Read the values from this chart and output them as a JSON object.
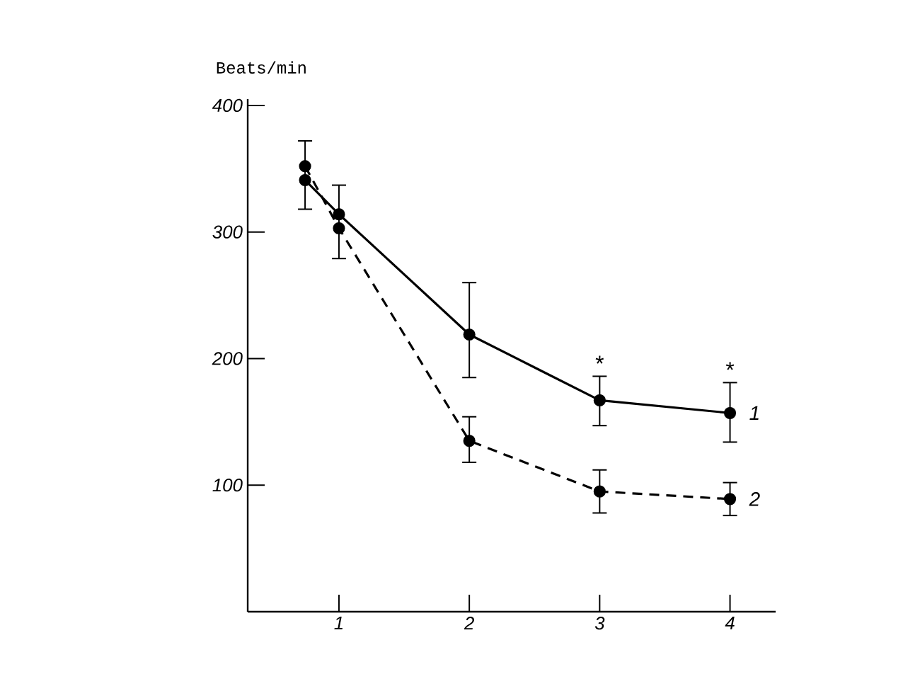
{
  "chart_data": {
    "type": "line",
    "ylabel": "Beats/min",
    "x": [
      0.74,
      1,
      2,
      3,
      4
    ],
    "xlim": [
      0.3,
      4.35
    ],
    "xticks": [
      1,
      2,
      3,
      4
    ],
    "ylim": [
      0,
      405
    ],
    "yticks": [
      100,
      200,
      300,
      400
    ],
    "marker": "circle",
    "grid": false,
    "series": [
      {
        "name": "1",
        "color": "#000000",
        "line_style": "solid",
        "values": [
          341,
          314,
          219,
          167,
          157
        ],
        "errors": [
          [
            318,
            372
          ],
          null,
          [
            185,
            260
          ],
          [
            147,
            186
          ],
          [
            134,
            181
          ]
        ]
      },
      {
        "name": "2",
        "color": "#000000",
        "line_style": "dashed",
        "values": [
          352,
          303,
          135,
          95,
          89
        ],
        "errors": [
          null,
          [
            279,
            337
          ],
          [
            118,
            154
          ],
          [
            78,
            112
          ],
          [
            76,
            102
          ]
        ]
      }
    ],
    "annotations": [
      {
        "text": "*",
        "x": 3,
        "y": 186
      },
      {
        "text": "*",
        "x": 4,
        "y": 181
      }
    ]
  }
}
